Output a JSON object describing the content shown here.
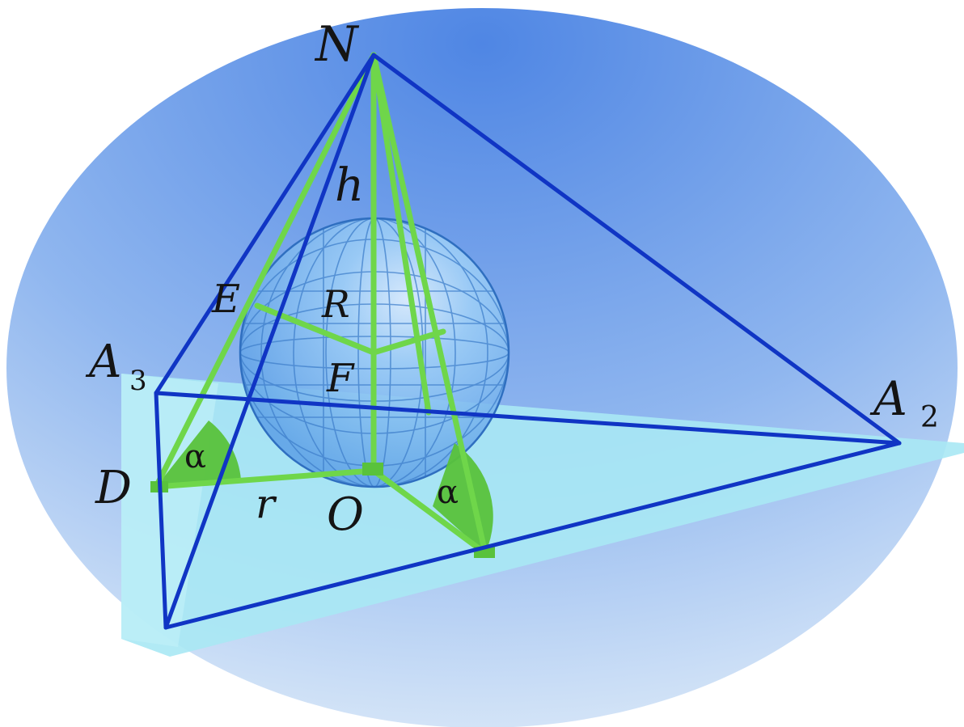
{
  "colors": {
    "background_top": "#5b8fe6",
    "background_bottom": "#cfe3f6",
    "base_plane": "#a9e8f4",
    "pyramid_edges": "#1035c4",
    "green_lines": "#6fd64a",
    "angle_fill": "#59c23b",
    "sphere": "#7fb8ef",
    "sphere_grid": "#3c7ac8"
  },
  "labels": {
    "apex": "N",
    "height": "h",
    "tangent_point": "E",
    "radius_big": "R",
    "sphere_center": "F",
    "vertex_a3_base": "A",
    "vertex_a3_sub": "3",
    "vertex_a2_base": "A",
    "vertex_a2_sub": "2",
    "foot_point": "D",
    "radius_small": "r",
    "base_center": "O",
    "angle_left": "α",
    "angle_right": "α"
  }
}
